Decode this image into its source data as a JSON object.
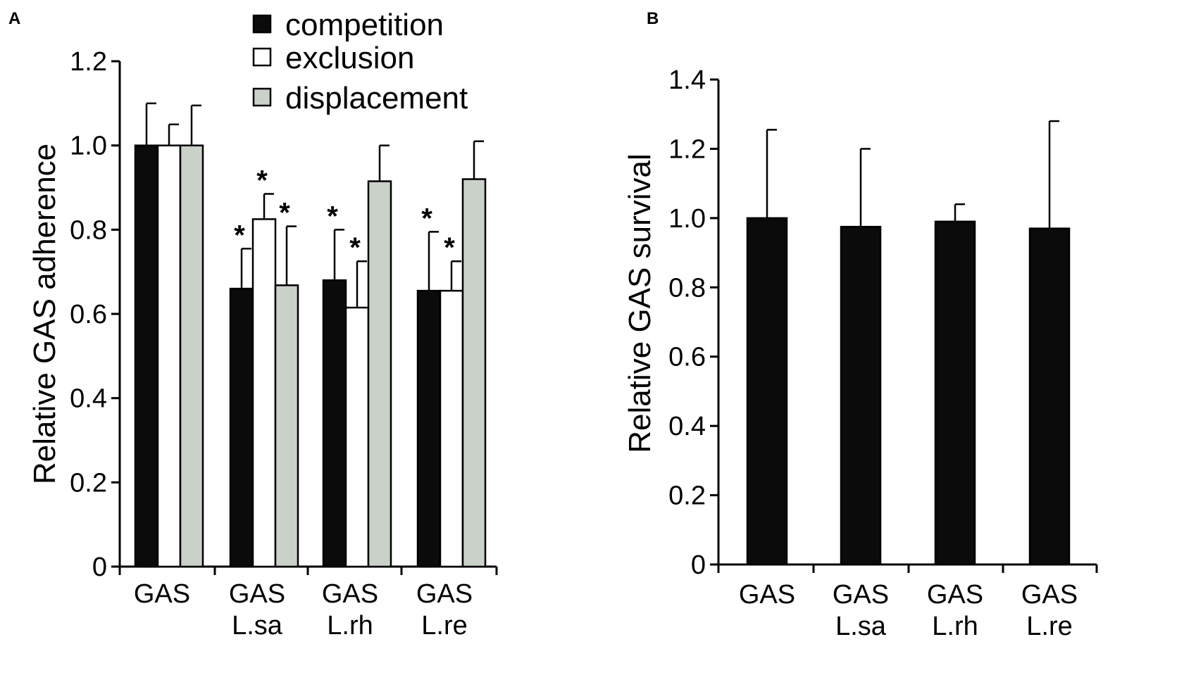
{
  "chart_data": [
    {
      "panel": "A",
      "type": "bar",
      "ylabel": "Relative GAS adherence",
      "ylim": [
        0,
        1.2
      ],
      "yticks": [
        "0",
        "0.2",
        "0.4",
        "0.6",
        "0.8",
        "1.0",
        "1.2"
      ],
      "categories": [
        [
          "GAS"
        ],
        [
          "GAS",
          "L.sa"
        ],
        [
          "GAS",
          "L.rh"
        ],
        [
          "GAS",
          "L.re"
        ]
      ],
      "legend": [
        "competition",
        "exclusion",
        "displacement"
      ],
      "series_colors": [
        "#0b0b0b",
        "#ffffff",
        "#c9d1c8"
      ],
      "series": [
        {
          "name": "competition",
          "values": [
            1.0,
            0.66,
            0.68,
            0.655
          ],
          "errors": [
            0.1,
            0.095,
            0.12,
            0.14
          ],
          "significant": [
            false,
            true,
            true,
            true
          ]
        },
        {
          "name": "exclusion",
          "values": [
            1.0,
            0.825,
            0.615,
            0.655
          ],
          "errors": [
            0.05,
            0.06,
            0.11,
            0.07
          ],
          "significant": [
            false,
            true,
            true,
            true
          ]
        },
        {
          "name": "displacement",
          "values": [
            1.0,
            0.668,
            0.915,
            0.92
          ],
          "errors": [
            0.095,
            0.14,
            0.085,
            0.09
          ],
          "significant": [
            false,
            true,
            false,
            false
          ]
        }
      ],
      "significance_marker": "*"
    },
    {
      "panel": "B",
      "type": "bar",
      "ylabel": "Relative GAS survival",
      "ylim": [
        0,
        1.4
      ],
      "yticks": [
        "0",
        "0.2",
        "0.4",
        "0.6",
        "0.8",
        "1.0",
        "1.2",
        "1.4"
      ],
      "categories": [
        [
          "GAS"
        ],
        [
          "GAS",
          "L.sa"
        ],
        [
          "GAS",
          "L.rh"
        ],
        [
          "GAS",
          "L.re"
        ]
      ],
      "series_colors": [
        "#0b0b0b"
      ],
      "series": [
        {
          "name": "survival",
          "values": [
            1.0,
            0.975,
            0.99,
            0.97
          ],
          "errors": [
            0.255,
            0.225,
            0.05,
            0.31
          ]
        }
      ]
    }
  ]
}
